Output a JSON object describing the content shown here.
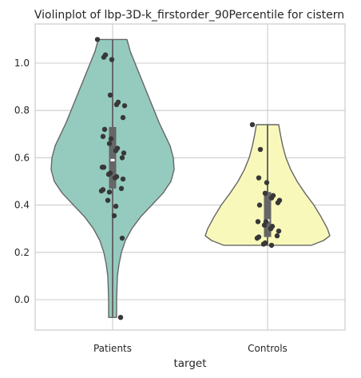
{
  "chart_data": {
    "type": "violin",
    "title": "Violinplot of lbp-3D-k_firstorder_90Percentile for cistern",
    "xlabel": "target",
    "ylabel": "",
    "categories": [
      "Patients",
      "Controls"
    ],
    "ylim": [
      -0.13,
      1.16
    ],
    "yticks": [
      0.0,
      0.2,
      0.4,
      0.6,
      0.8,
      1.0
    ],
    "ytick_labels": [
      "0.0",
      "0.2",
      "0.4",
      "0.6",
      "0.8",
      "1.0"
    ],
    "grid": true,
    "colors": {
      "Patients": "#95cbbf",
      "Controls": "#f8f8bb",
      "outline": "#666666",
      "box": "#666666",
      "points": "#383838"
    },
    "series": [
      {
        "category": "Patients",
        "min": -0.075,
        "q1": 0.47,
        "median": 0.59,
        "q3": 0.73,
        "max": 1.1,
        "points": [
          1.1,
          1.035,
          1.025,
          1.015,
          0.865,
          0.835,
          0.825,
          0.82,
          0.77,
          0.72,
          0.69,
          0.68,
          0.66,
          0.64,
          0.63,
          0.62,
          0.6,
          0.56,
          0.56,
          0.535,
          0.53,
          0.52,
          0.515,
          0.51,
          0.47,
          0.465,
          0.46,
          0.455,
          0.42,
          0.395,
          0.355,
          0.26,
          -0.075
        ]
      },
      {
        "category": "Controls",
        "min": 0.23,
        "q1": 0.265,
        "median": 0.335,
        "q3": 0.455,
        "max": 0.74,
        "points": [
          0.74,
          0.635,
          0.515,
          0.495,
          0.45,
          0.44,
          0.43,
          0.42,
          0.41,
          0.4,
          0.33,
          0.33,
          0.315,
          0.31,
          0.3,
          0.29,
          0.27,
          0.265,
          0.26,
          0.24,
          0.235,
          0.23
        ]
      }
    ]
  }
}
